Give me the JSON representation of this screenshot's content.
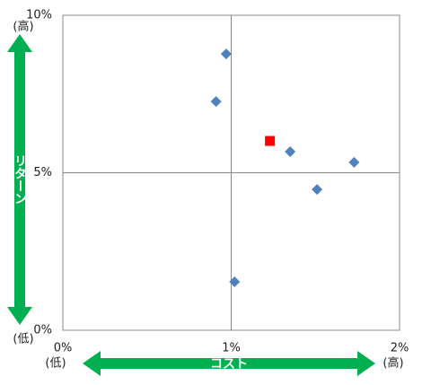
{
  "chart_data": {
    "type": "scatter",
    "xlabel": "コスト",
    "ylabel": "リターン",
    "annotations": [
      "(高)",
      "(低)",
      "(低)",
      "(高)"
    ],
    "xlim": [
      0,
      2
    ],
    "ylim": [
      0,
      10
    ],
    "xticks": [
      {
        "value": 0,
        "label": "0%"
      },
      {
        "value": 1,
        "label": "1%"
      },
      {
        "value": 2,
        "label": "2%"
      }
    ],
    "yticks": [
      {
        "value": 0,
        "label": "0%"
      },
      {
        "value": 5,
        "label": "5%"
      },
      {
        "value": 10,
        "label": "10%"
      }
    ],
    "grid": true,
    "arrow_color": "#00b050",
    "series": [
      {
        "color": "#4f81bd",
        "marker": "diamond",
        "x": [
          0.97,
          0.91,
          1.35,
          1.73,
          1.51,
          1.02
        ],
        "values": [
          8.77,
          7.26,
          5.67,
          5.33,
          4.47,
          1.54
        ]
      },
      {
        "color": "#ff0000",
        "marker": "square",
        "x": [
          1.23
        ],
        "values": [
          6.01
        ]
      }
    ]
  }
}
